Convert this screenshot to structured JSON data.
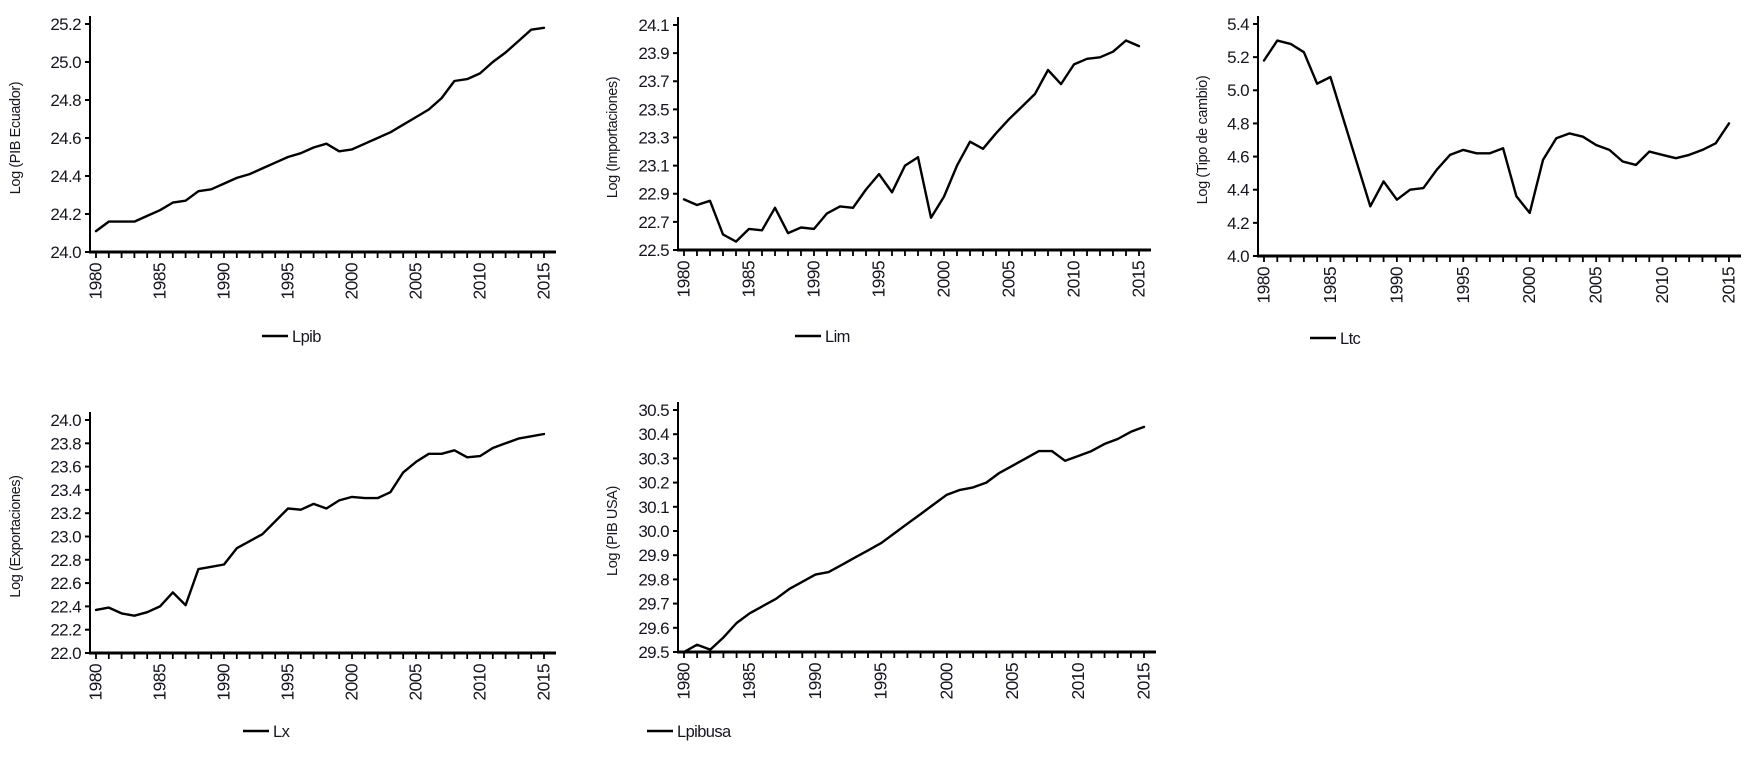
{
  "page": {
    "background": "#ffffff",
    "line_color": "#000000",
    "text_color": "#16161f"
  },
  "chart_data": [
    {
      "id": "lpib",
      "type": "line",
      "legend": "Lpib",
      "ylabel": "Log (PIB Ecuador)",
      "ylim": [
        24.0,
        25.2
      ],
      "ytick_step": 0.2,
      "grid": false,
      "legend_position": "bottom",
      "xtick_labels": [
        "1980",
        "1985",
        "1990",
        "1995",
        "2000",
        "2005",
        "2010",
        "2015"
      ],
      "x": [
        1980,
        1981,
        1982,
        1983,
        1984,
        1985,
        1986,
        1987,
        1988,
        1989,
        1990,
        1991,
        1992,
        1993,
        1994,
        1995,
        1996,
        1997,
        1998,
        1999,
        2000,
        2001,
        2002,
        2003,
        2004,
        2005,
        2006,
        2007,
        2008,
        2009,
        2010,
        2011,
        2012,
        2013,
        2014,
        2015
      ],
      "values": [
        24.11,
        24.16,
        24.16,
        24.16,
        24.19,
        24.22,
        24.26,
        24.27,
        24.32,
        24.33,
        24.36,
        24.39,
        24.41,
        24.44,
        24.47,
        24.5,
        24.52,
        24.55,
        24.57,
        24.53,
        24.54,
        24.57,
        24.6,
        24.63,
        24.67,
        24.71,
        24.75,
        24.81,
        24.9,
        24.91,
        24.94,
        25.0,
        25.05,
        25.11,
        25.17,
        25.18
      ]
    },
    {
      "id": "lim",
      "type": "line",
      "legend": "Lim",
      "ylabel": "Log (Importaciones)",
      "ylim": [
        22.5,
        24.1
      ],
      "ytick_step": 0.2,
      "grid": false,
      "legend_position": "bottom",
      "xtick_labels": [
        "1980",
        "1985",
        "1990",
        "1995",
        "2000",
        "2005",
        "2010",
        "2015"
      ],
      "x": [
        1980,
        1981,
        1982,
        1983,
        1984,
        1985,
        1986,
        1987,
        1988,
        1989,
        1990,
        1991,
        1992,
        1993,
        1994,
        1995,
        1996,
        1997,
        1998,
        1999,
        2000,
        2001,
        2002,
        2003,
        2004,
        2005,
        2006,
        2007,
        2008,
        2009,
        2010,
        2011,
        2012,
        2013,
        2014,
        2015
      ],
      "values": [
        22.86,
        22.82,
        22.85,
        22.61,
        22.56,
        22.65,
        22.64,
        22.8,
        22.62,
        22.66,
        22.65,
        22.76,
        22.81,
        22.8,
        22.93,
        23.04,
        22.91,
        23.1,
        23.16,
        22.73,
        22.88,
        23.1,
        23.27,
        23.22,
        23.33,
        23.43,
        23.52,
        23.61,
        23.78,
        23.68,
        23.82,
        23.86,
        23.87,
        23.91,
        23.99,
        23.95
      ]
    },
    {
      "id": "ltc",
      "type": "line",
      "legend": "Ltc",
      "ylabel": "Log (Tipo de cambio)",
      "ylim": [
        4.0,
        5.4
      ],
      "ytick_step": 0.2,
      "grid": false,
      "legend_position": "bottom",
      "xtick_labels": [
        "1980",
        "1985",
        "1990",
        "1995",
        "2000",
        "2005",
        "2010",
        "2015"
      ],
      "x": [
        1980,
        1981,
        1982,
        1983,
        1984,
        1985,
        1986,
        1987,
        1988,
        1989,
        1990,
        1991,
        1992,
        1993,
        1994,
        1995,
        1996,
        1997,
        1998,
        1999,
        2000,
        2001,
        2002,
        2003,
        2004,
        2005,
        2006,
        2007,
        2008,
        2009,
        2010,
        2011,
        2012,
        2013,
        2014,
        2015
      ],
      "values": [
        5.18,
        5.3,
        5.28,
        5.23,
        5.04,
        5.08,
        4.82,
        4.56,
        4.3,
        4.45,
        4.34,
        4.4,
        4.41,
        4.52,
        4.61,
        4.64,
        4.62,
        4.62,
        4.65,
        4.36,
        4.26,
        4.58,
        4.71,
        4.74,
        4.72,
        4.67,
        4.64,
        4.57,
        4.55,
        4.63,
        4.61,
        4.59,
        4.61,
        4.64,
        4.68,
        4.8
      ]
    },
    {
      "id": "lx",
      "type": "line",
      "legend": "Lx",
      "ylabel": "Log (Exportaciones)",
      "ylim": [
        22.0,
        24.0
      ],
      "ytick_step": 0.2,
      "grid": false,
      "legend_position": "bottom",
      "xtick_labels": [
        "1980",
        "1985",
        "1990",
        "1995",
        "2000",
        "2005",
        "2010",
        "2015"
      ],
      "x": [
        1980,
        1981,
        1982,
        1983,
        1984,
        1985,
        1986,
        1987,
        1988,
        1989,
        1990,
        1991,
        1992,
        1993,
        1994,
        1995,
        1996,
        1997,
        1998,
        1999,
        2000,
        2001,
        2002,
        2003,
        2004,
        2005,
        2006,
        2007,
        2008,
        2009,
        2010,
        2011,
        2012,
        2013,
        2014,
        2015
      ],
      "values": [
        22.37,
        22.39,
        22.34,
        22.32,
        22.35,
        22.4,
        22.52,
        22.41,
        22.72,
        22.74,
        22.76,
        22.9,
        22.96,
        23.02,
        23.13,
        23.24,
        23.23,
        23.28,
        23.24,
        23.31,
        23.34,
        23.33,
        23.33,
        23.38,
        23.55,
        23.64,
        23.71,
        23.71,
        23.74,
        23.68,
        23.69,
        23.76,
        23.8,
        23.84,
        23.86,
        23.88
      ]
    },
    {
      "id": "lpibusa",
      "type": "line",
      "legend": "Lpibusa",
      "ylabel": "Log (PIB USA)",
      "ylim": [
        29.5,
        30.5
      ],
      "ytick_step": 0.1,
      "grid": false,
      "legend_position": "bottom",
      "xtick_labels": [
        "1980",
        "1985",
        "1990",
        "1995",
        "2000",
        "2005",
        "2010",
        "2015"
      ],
      "x": [
        1980,
        1981,
        1982,
        1983,
        1984,
        1985,
        1986,
        1987,
        1988,
        1989,
        1990,
        1991,
        1992,
        1993,
        1994,
        1995,
        1996,
        1997,
        1998,
        1999,
        2000,
        2001,
        2002,
        2003,
        2004,
        2005,
        2006,
        2007,
        2008,
        2009,
        2010,
        2011,
        2012,
        2013,
        2014,
        2015
      ],
      "values": [
        29.5,
        29.53,
        29.51,
        29.56,
        29.62,
        29.66,
        29.69,
        29.72,
        29.76,
        29.79,
        29.82,
        29.83,
        29.86,
        29.89,
        29.92,
        29.95,
        29.99,
        30.03,
        30.07,
        30.11,
        30.15,
        30.17,
        30.18,
        30.2,
        30.24,
        30.27,
        30.3,
        30.33,
        30.33,
        30.29,
        30.31,
        30.33,
        30.36,
        30.38,
        30.41,
        30.43
      ]
    }
  ]
}
